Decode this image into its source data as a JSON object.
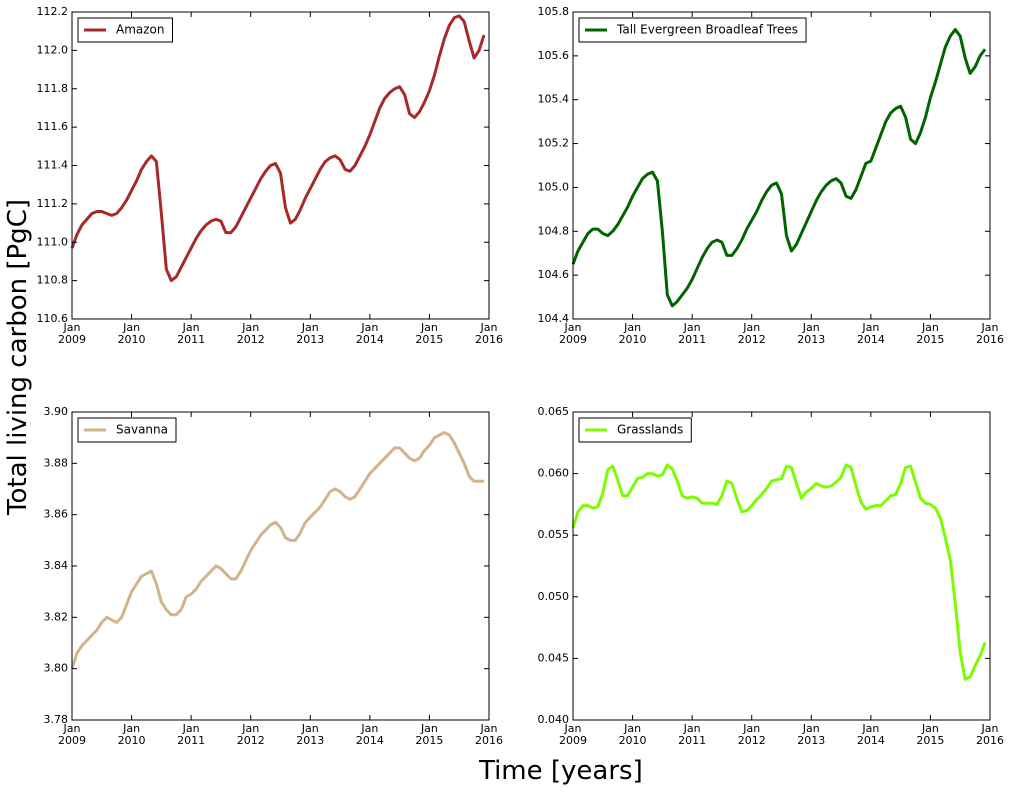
{
  "xlabel": "Time [years]",
  "ylabel": "Total living carbon [PgC]",
  "chart_data": [
    {
      "type": "line",
      "legend": "upper left",
      "x": [
        "2009-01",
        "2009-02",
        "2009-03",
        "2009-04",
        "2009-05",
        "2009-06",
        "2009-07",
        "2009-08",
        "2009-09",
        "2009-10",
        "2009-11",
        "2009-12",
        "2010-01",
        "2010-02",
        "2010-03",
        "2010-04",
        "2010-05",
        "2010-06",
        "2010-07",
        "2010-08",
        "2010-09",
        "2010-10",
        "2010-11",
        "2010-12",
        "2011-01",
        "2011-02",
        "2011-03",
        "2011-04",
        "2011-05",
        "2011-06",
        "2011-07",
        "2011-08",
        "2011-09",
        "2011-10",
        "2011-11",
        "2011-12",
        "2012-01",
        "2012-02",
        "2012-03",
        "2012-04",
        "2012-05",
        "2012-06",
        "2012-07",
        "2012-08",
        "2012-09",
        "2012-10",
        "2012-11",
        "2012-12",
        "2013-01",
        "2013-02",
        "2013-03",
        "2013-04",
        "2013-05",
        "2013-06",
        "2013-07",
        "2013-08",
        "2013-09",
        "2013-10",
        "2013-11",
        "2013-12",
        "2014-01",
        "2014-02",
        "2014-03",
        "2014-04",
        "2014-05",
        "2014-06",
        "2014-07",
        "2014-08",
        "2014-09",
        "2014-10",
        "2014-11",
        "2014-12",
        "2015-01",
        "2015-02",
        "2015-03",
        "2015-04",
        "2015-05",
        "2015-06",
        "2015-07",
        "2015-08",
        "2015-09",
        "2015-10",
        "2015-11",
        "2015-12"
      ],
      "xlim": [
        "2009-01",
        "2016-01"
      ],
      "xticks": [
        {
          "value": "2009-01",
          "label": "Jan 2009"
        },
        {
          "value": "2010-01",
          "label": "Jan 2010"
        },
        {
          "value": "2011-01",
          "label": "Jan 2011"
        },
        {
          "value": "2012-01",
          "label": "Jan 2012"
        },
        {
          "value": "2013-01",
          "label": "Jan 2013"
        },
        {
          "value": "2014-01",
          "label": "Jan 2014"
        },
        {
          "value": "2015-01",
          "label": "Jan 2015"
        },
        {
          "value": "2016-01",
          "label": "Jan 2016"
        }
      ],
      "ylim": [
        110.6,
        112.2
      ],
      "yticks": [
        110.6,
        110.8,
        {
          "value": 111,
          "label": "111.0"
        },
        111.2,
        111.4,
        111.6,
        111.8,
        {
          "value": 112,
          "label": "112.0"
        },
        112.2
      ],
      "series": [
        {
          "name": "Amazon",
          "color": "#a52a2a",
          "values": [
            110.97,
            111.04,
            111.09,
            111.12,
            111.15,
            111.16,
            111.16,
            111.15,
            111.14,
            111.15,
            111.18,
            111.22,
            111.27,
            111.32,
            111.38,
            111.42,
            111.45,
            111.42,
            111.15,
            110.86,
            110.8,
            110.82,
            110.87,
            110.92,
            110.97,
            111.02,
            111.06,
            111.09,
            111.11,
            111.12,
            111.11,
            111.05,
            111.05,
            111.08,
            111.13,
            111.18,
            111.23,
            111.28,
            111.33,
            111.37,
            111.4,
            111.41,
            111.36,
            111.18,
            111.1,
            111.12,
            111.17,
            111.23,
            111.28,
            111.33,
            111.38,
            111.42,
            111.44,
            111.45,
            111.43,
            111.38,
            111.37,
            111.4,
            111.45,
            111.5,
            111.56,
            111.63,
            111.7,
            111.75,
            111.78,
            111.8,
            111.81,
            111.77,
            111.67,
            111.65,
            111.68,
            111.73,
            111.79,
            111.87,
            111.97,
            112.06,
            112.13,
            112.17,
            112.18,
            112.15,
            112.05,
            111.96,
            112.0,
            112.08
          ]
        }
      ]
    },
    {
      "type": "line",
      "legend": "upper left",
      "x": [
        "2009-01",
        "2009-02",
        "2009-03",
        "2009-04",
        "2009-05",
        "2009-06",
        "2009-07",
        "2009-08",
        "2009-09",
        "2009-10",
        "2009-11",
        "2009-12",
        "2010-01",
        "2010-02",
        "2010-03",
        "2010-04",
        "2010-05",
        "2010-06",
        "2010-07",
        "2010-08",
        "2010-09",
        "2010-10",
        "2010-11",
        "2010-12",
        "2011-01",
        "2011-02",
        "2011-03",
        "2011-04",
        "2011-05",
        "2011-06",
        "2011-07",
        "2011-08",
        "2011-09",
        "2011-10",
        "2011-11",
        "2011-12",
        "2012-01",
        "2012-02",
        "2012-03",
        "2012-04",
        "2012-05",
        "2012-06",
        "2012-07",
        "2012-08",
        "2012-09",
        "2012-10",
        "2012-11",
        "2012-12",
        "2013-01",
        "2013-02",
        "2013-03",
        "2013-04",
        "2013-05",
        "2013-06",
        "2013-07",
        "2013-08",
        "2013-09",
        "2013-10",
        "2013-11",
        "2013-12",
        "2014-01",
        "2014-02",
        "2014-03",
        "2014-04",
        "2014-05",
        "2014-06",
        "2014-07",
        "2014-08",
        "2014-09",
        "2014-10",
        "2014-11",
        "2014-12",
        "2015-01",
        "2015-02",
        "2015-03",
        "2015-04",
        "2015-05",
        "2015-06",
        "2015-07",
        "2015-08",
        "2015-09",
        "2015-10",
        "2015-11",
        "2015-12"
      ],
      "xlim": [
        "2009-01",
        "2016-01"
      ],
      "xticks": [
        {
          "value": "2009-01",
          "label": "Jan 2009"
        },
        {
          "value": "2010-01",
          "label": "Jan 2010"
        },
        {
          "value": "2011-01",
          "label": "Jan 2011"
        },
        {
          "value": "2012-01",
          "label": "Jan 2012"
        },
        {
          "value": "2013-01",
          "label": "Jan 2013"
        },
        {
          "value": "2014-01",
          "label": "Jan 2014"
        },
        {
          "value": "2015-01",
          "label": "Jan 2015"
        },
        {
          "value": "2016-01",
          "label": "Jan 2016"
        }
      ],
      "ylim": [
        104.4,
        105.8
      ],
      "yticks": [
        104.4,
        104.6,
        104.8,
        {
          "value": 105,
          "label": "105.0"
        },
        105.2,
        105.4,
        105.6,
        105.8
      ],
      "series": [
        {
          "name": "Tall Evergreen Broadleaf Trees",
          "color": "#006400",
          "values": [
            104.65,
            104.71,
            104.75,
            104.79,
            104.81,
            104.81,
            104.79,
            104.78,
            104.8,
            104.83,
            104.87,
            104.91,
            104.96,
            105.0,
            105.04,
            105.06,
            105.07,
            105.03,
            104.8,
            104.51,
            104.46,
            104.48,
            104.51,
            104.54,
            104.58,
            104.63,
            104.68,
            104.72,
            104.75,
            104.76,
            104.75,
            104.69,
            104.69,
            104.72,
            104.76,
            104.81,
            104.85,
            104.89,
            104.94,
            104.98,
            105.01,
            105.02,
            104.97,
            104.78,
            104.71,
            104.74,
            104.79,
            104.84,
            104.89,
            104.94,
            104.98,
            105.01,
            105.03,
            105.04,
            105.02,
            104.96,
            104.95,
            104.99,
            105.05,
            105.11,
            105.12,
            105.18,
            105.24,
            105.3,
            105.34,
            105.36,
            105.37,
            105.32,
            105.22,
            105.2,
            105.25,
            105.32,
            105.41,
            105.48,
            105.56,
            105.64,
            105.69,
            105.72,
            105.69,
            105.59,
            105.52,
            105.55,
            105.6,
            105.63
          ]
        }
      ]
    },
    {
      "type": "line",
      "legend": "upper left",
      "x": [
        "2009-01",
        "2009-02",
        "2009-03",
        "2009-04",
        "2009-05",
        "2009-06",
        "2009-07",
        "2009-08",
        "2009-09",
        "2009-10",
        "2009-11",
        "2009-12",
        "2010-01",
        "2010-02",
        "2010-03",
        "2010-04",
        "2010-05",
        "2010-06",
        "2010-07",
        "2010-08",
        "2010-09",
        "2010-10",
        "2010-11",
        "2010-12",
        "2011-01",
        "2011-02",
        "2011-03",
        "2011-04",
        "2011-05",
        "2011-06",
        "2011-07",
        "2011-08",
        "2011-09",
        "2011-10",
        "2011-11",
        "2011-12",
        "2012-01",
        "2012-02",
        "2012-03",
        "2012-04",
        "2012-05",
        "2012-06",
        "2012-07",
        "2012-08",
        "2012-09",
        "2012-10",
        "2012-11",
        "2012-12",
        "2013-01",
        "2013-02",
        "2013-03",
        "2013-04",
        "2013-05",
        "2013-06",
        "2013-07",
        "2013-08",
        "2013-09",
        "2013-10",
        "2013-11",
        "2013-12",
        "2014-01",
        "2014-02",
        "2014-03",
        "2014-04",
        "2014-05",
        "2014-06",
        "2014-07",
        "2014-08",
        "2014-09",
        "2014-10",
        "2014-11",
        "2014-12",
        "2015-01",
        "2015-02",
        "2015-03",
        "2015-04",
        "2015-05",
        "2015-06",
        "2015-07",
        "2015-08",
        "2015-09",
        "2015-10",
        "2015-11",
        "2015-12"
      ],
      "xlim": [
        "2009-01",
        "2016-01"
      ],
      "xticks": [
        {
          "value": "2009-01",
          "label": "Jan 2009"
        },
        {
          "value": "2010-01",
          "label": "Jan 2010"
        },
        {
          "value": "2011-01",
          "label": "Jan 2011"
        },
        {
          "value": "2012-01",
          "label": "Jan 2012"
        },
        {
          "value": "2013-01",
          "label": "Jan 2013"
        },
        {
          "value": "2014-01",
          "label": "Jan 2014"
        },
        {
          "value": "2015-01",
          "label": "Jan 2015"
        },
        {
          "value": "2016-01",
          "label": "Jan 2016"
        }
      ],
      "ylim": [
        3.78,
        3.9
      ],
      "yticks": [
        3.78,
        {
          "value": 3.8,
          "label": "3.80"
        },
        3.82,
        3.84,
        3.86,
        3.88,
        {
          "value": 3.9,
          "label": "3.90"
        }
      ],
      "series": [
        {
          "name": "Savanna",
          "color": "#d2b48c",
          "values": [
            3.8,
            3.806,
            3.809,
            3.811,
            3.813,
            3.815,
            3.818,
            3.82,
            3.819,
            3.818,
            3.82,
            3.825,
            3.83,
            3.833,
            3.836,
            3.837,
            3.838,
            3.833,
            3.826,
            3.823,
            3.821,
            3.821,
            3.823,
            3.828,
            3.829,
            3.831,
            3.834,
            3.836,
            3.838,
            3.84,
            3.839,
            3.837,
            3.835,
            3.835,
            3.838,
            3.842,
            3.846,
            3.849,
            3.852,
            3.854,
            3.856,
            3.857,
            3.855,
            3.851,
            3.85,
            3.85,
            3.853,
            3.857,
            3.859,
            3.861,
            3.863,
            3.866,
            3.869,
            3.87,
            3.869,
            3.867,
            3.866,
            3.867,
            3.87,
            3.873,
            3.876,
            3.878,
            3.88,
            3.882,
            3.884,
            3.886,
            3.886,
            3.884,
            3.882,
            3.881,
            3.882,
            3.885,
            3.887,
            3.89,
            3.891,
            3.892,
            3.891,
            3.888,
            3.884,
            3.88,
            3.875,
            3.873,
            3.873,
            3.873
          ]
        }
      ]
    },
    {
      "type": "line",
      "legend": "upper left",
      "x": [
        "2009-01",
        "2009-02",
        "2009-03",
        "2009-04",
        "2009-05",
        "2009-06",
        "2009-07",
        "2009-08",
        "2009-09",
        "2009-10",
        "2009-11",
        "2009-12",
        "2010-01",
        "2010-02",
        "2010-03",
        "2010-04",
        "2010-05",
        "2010-06",
        "2010-07",
        "2010-08",
        "2010-09",
        "2010-10",
        "2010-11",
        "2010-12",
        "2011-01",
        "2011-02",
        "2011-03",
        "2011-04",
        "2011-05",
        "2011-06",
        "2011-07",
        "2011-08",
        "2011-09",
        "2011-10",
        "2011-11",
        "2011-12",
        "2012-01",
        "2012-02",
        "2012-03",
        "2012-04",
        "2012-05",
        "2012-06",
        "2012-07",
        "2012-08",
        "2012-09",
        "2012-10",
        "2012-11",
        "2012-12",
        "2013-01",
        "2013-02",
        "2013-03",
        "2013-04",
        "2013-05",
        "2013-06",
        "2013-07",
        "2013-08",
        "2013-09",
        "2013-10",
        "2013-11",
        "2013-12",
        "2014-01",
        "2014-02",
        "2014-03",
        "2014-04",
        "2014-05",
        "2014-06",
        "2014-07",
        "2014-08",
        "2014-09",
        "2014-10",
        "2014-11",
        "2014-12",
        "2015-01",
        "2015-02",
        "2015-03",
        "2015-04",
        "2015-05",
        "2015-06",
        "2015-07",
        "2015-08",
        "2015-09",
        "2015-10",
        "2015-11",
        "2015-12"
      ],
      "xlim": [
        "2009-01",
        "2016-01"
      ],
      "xticks": [
        {
          "value": "2009-01",
          "label": "Jan 2009"
        },
        {
          "value": "2010-01",
          "label": "Jan 2010"
        },
        {
          "value": "2011-01",
          "label": "Jan 2011"
        },
        {
          "value": "2012-01",
          "label": "Jan 2012"
        },
        {
          "value": "2013-01",
          "label": "Jan 2013"
        },
        {
          "value": "2014-01",
          "label": "Jan 2014"
        },
        {
          "value": "2015-01",
          "label": "Jan 2015"
        },
        {
          "value": "2016-01",
          "label": "Jan 2016"
        }
      ],
      "ylim": [
        0.04,
        0.065
      ],
      "yticks": [
        {
          "value": 0.04,
          "label": "0.040"
        },
        0.045,
        {
          "value": 0.05,
          "label": "0.050"
        },
        0.055,
        {
          "value": 0.06,
          "label": "0.060"
        },
        0.065
      ],
      "series": [
        {
          "name": "Grasslands",
          "color": "#7cfc00",
          "values": [
            0.0556,
            0.0569,
            0.0574,
            0.0574,
            0.0572,
            0.0573,
            0.0584,
            0.0603,
            0.0606,
            0.0595,
            0.0582,
            0.0582,
            0.0589,
            0.0596,
            0.0597,
            0.06,
            0.06,
            0.0598,
            0.0599,
            0.0607,
            0.0604,
            0.0594,
            0.0582,
            0.058,
            0.0581,
            0.058,
            0.0576,
            0.0576,
            0.0576,
            0.0575,
            0.0582,
            0.0594,
            0.0592,
            0.058,
            0.0569,
            0.057,
            0.0574,
            0.0579,
            0.0583,
            0.0588,
            0.0594,
            0.0595,
            0.0596,
            0.0606,
            0.0605,
            0.0592,
            0.058,
            0.0585,
            0.0588,
            0.0592,
            0.059,
            0.0589,
            0.059,
            0.0593,
            0.0597,
            0.0607,
            0.0605,
            0.059,
            0.0577,
            0.0571,
            0.0573,
            0.0574,
            0.0574,
            0.0578,
            0.0582,
            0.0583,
            0.0592,
            0.0605,
            0.0606,
            0.0593,
            0.058,
            0.0576,
            0.0575,
            0.0572,
            0.0564,
            0.0548,
            0.053,
            0.0495,
            0.0455,
            0.0433,
            0.0435,
            0.0444,
            0.0452,
            0.0463
          ]
        }
      ]
    }
  ]
}
